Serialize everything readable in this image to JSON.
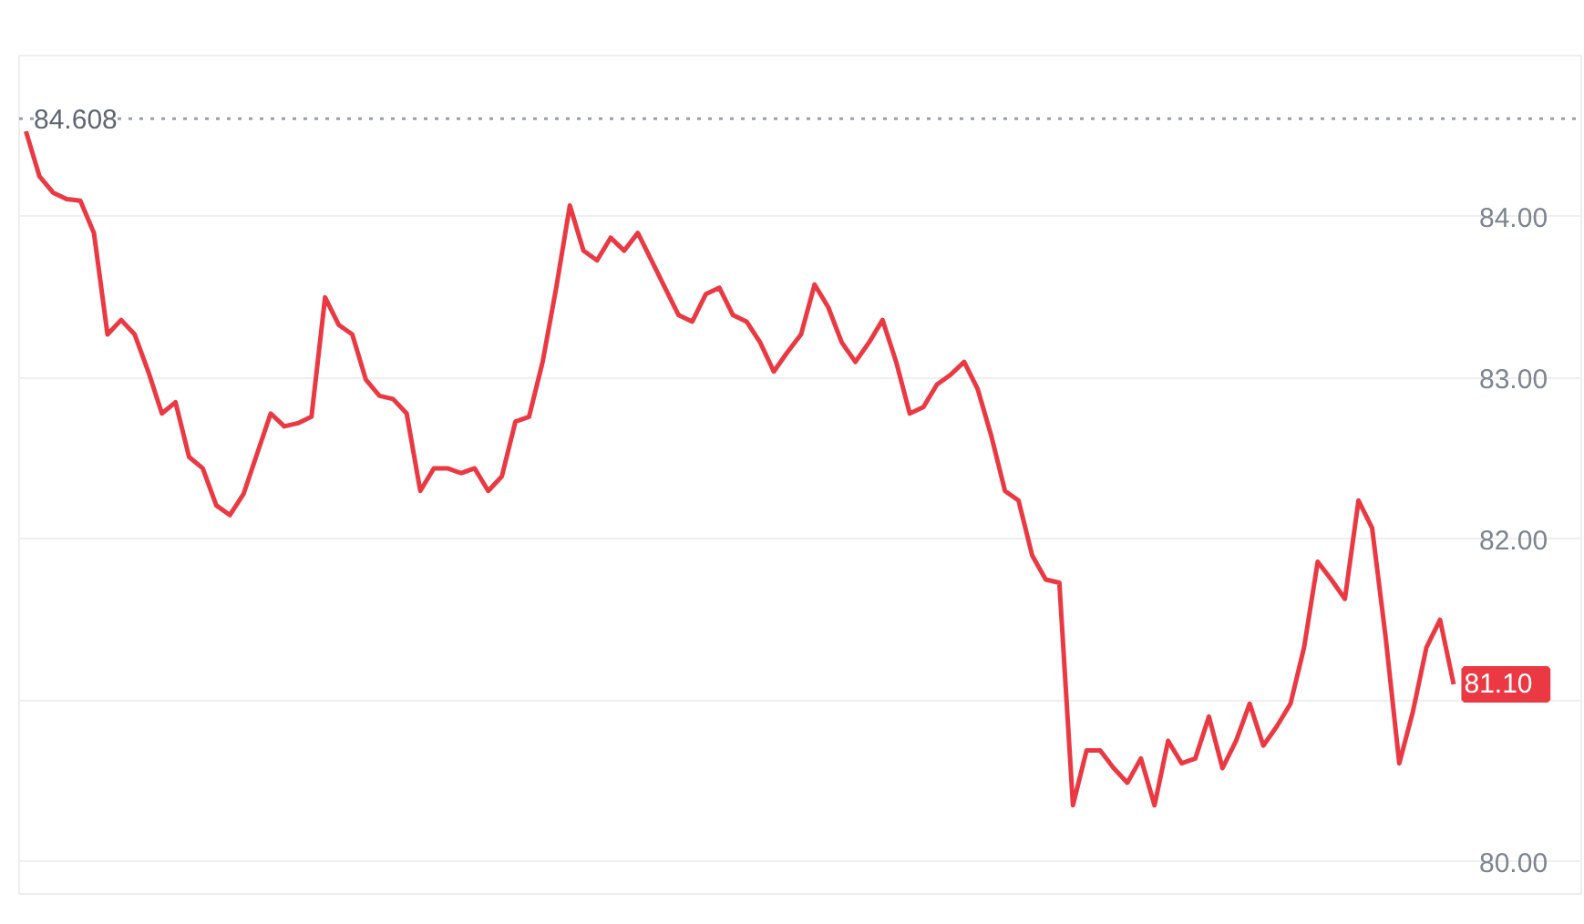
{
  "chart_data": {
    "type": "line",
    "categories": [
      null,
      null,
      null,
      null,
      null,
      null,
      null,
      null,
      null,
      null,
      null,
      null,
      null,
      null,
      null,
      null,
      null,
      null,
      null,
      null,
      null,
      null,
      null,
      null,
      null,
      null,
      null,
      null,
      null,
      null,
      null,
      null,
      null,
      null,
      null,
      null,
      null,
      null,
      null,
      null,
      null,
      null,
      null,
      null,
      null,
      null,
      null,
      null,
      null,
      null,
      null,
      null,
      null,
      null,
      null,
      null,
      null,
      null,
      null,
      null,
      null,
      null,
      null,
      null,
      null,
      null,
      null,
      null,
      null,
      null,
      null,
      null,
      null,
      null,
      null,
      null,
      null,
      null,
      null,
      null,
      null,
      null,
      null,
      null,
      null,
      null,
      null,
      null,
      null,
      null,
      null,
      null,
      null,
      null,
      null,
      null,
      null,
      null,
      null,
      null,
      null,
      null,
      null,
      null,
      null,
      null
    ],
    "series": [
      {
        "color": "#ea3943",
        "values": [
          84.53,
          84.25,
          84.15,
          84.11,
          84.1,
          83.9,
          83.27,
          83.36,
          83.27,
          83.04,
          82.78,
          82.85,
          82.51,
          82.44,
          82.21,
          82.15,
          82.28,
          82.53,
          82.78,
          82.7,
          82.72,
          82.76,
          83.5,
          83.33,
          83.27,
          82.99,
          82.89,
          82.87,
          82.78,
          82.3,
          82.44,
          82.44,
          82.41,
          82.44,
          82.3,
          82.39,
          82.73,
          82.76,
          83.1,
          83.56,
          84.07,
          83.79,
          83.73,
          83.87,
          83.79,
          83.9,
          83.73,
          83.56,
          83.39,
          83.35,
          83.52,
          83.56,
          83.39,
          83.35,
          83.22,
          83.04,
          83.16,
          83.27,
          83.58,
          83.44,
          83.22,
          83.1,
          83.22,
          83.36,
          83.1,
          82.78,
          82.82,
          82.96,
          83.02,
          83.1,
          82.93,
          82.64,
          82.3,
          82.24,
          81.9,
          81.75,
          81.73,
          80.35,
          80.69,
          80.69,
          80.58,
          80.49,
          80.64,
          80.35,
          80.75,
          80.61,
          80.64,
          80.9,
          80.58,
          80.75,
          80.98,
          80.72,
          80.84,
          80.98,
          81.33,
          81.86,
          81.75,
          81.63,
          82.24,
          82.07,
          81.39,
          80.61,
          80.93,
          81.33,
          81.5,
          81.1
        ]
      }
    ],
    "ylim": [
      79.8,
      85.0
    ],
    "yticks": [
      {
        "value": 80,
        "label": "80.00"
      },
      {
        "value": 81,
        "label": null
      },
      {
        "value": 82,
        "label": "82.00"
      },
      {
        "value": 83,
        "label": "83.00"
      },
      {
        "value": 84,
        "label": "84.00"
      }
    ],
    "grid": "y",
    "tick_labels": "y",
    "marker": "none",
    "line_style": "solid",
    "ref_lines": [
      {
        "axis": "y",
        "value": 84.608,
        "label": "84.608",
        "color": "#9aa0ab",
        "line_style": "dotted"
      }
    ],
    "annotations": [
      "81.10"
    ]
  }
}
